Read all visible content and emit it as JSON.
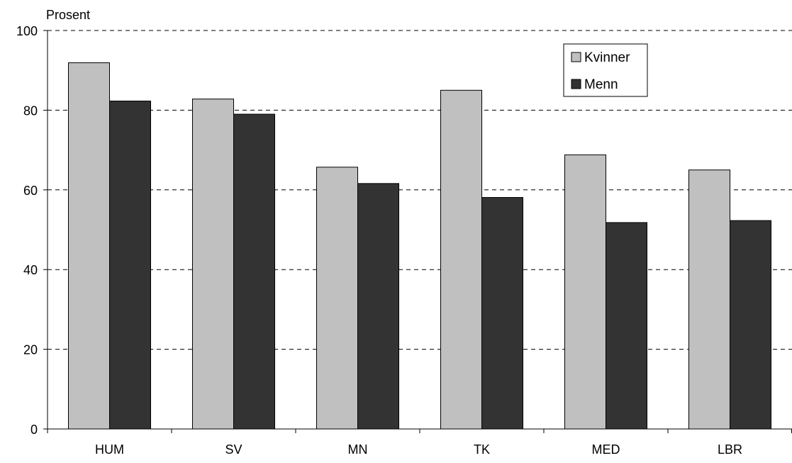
{
  "chart_data": {
    "type": "bar",
    "ylabel": "Prosent",
    "xlabel": "",
    "ylim": [
      0,
      100
    ],
    "yticks": [
      0,
      20,
      40,
      60,
      80,
      100
    ],
    "grid": {
      "y": true,
      "style": "dashed"
    },
    "legend": {
      "placement": "top-right-inside"
    },
    "categories": [
      "HUM",
      "SV",
      "MN",
      "TK",
      "MED",
      "LBR"
    ],
    "series": [
      {
        "name": "Kvinner",
        "color": "#c0c0c0",
        "values": [
          91.9,
          82.8,
          65.7,
          85.0,
          68.8,
          65.0
        ]
      },
      {
        "name": "Menn",
        "color": "#333333",
        "values": [
          82.3,
          79.0,
          61.6,
          58.1,
          51.8,
          52.3
        ]
      }
    ]
  }
}
